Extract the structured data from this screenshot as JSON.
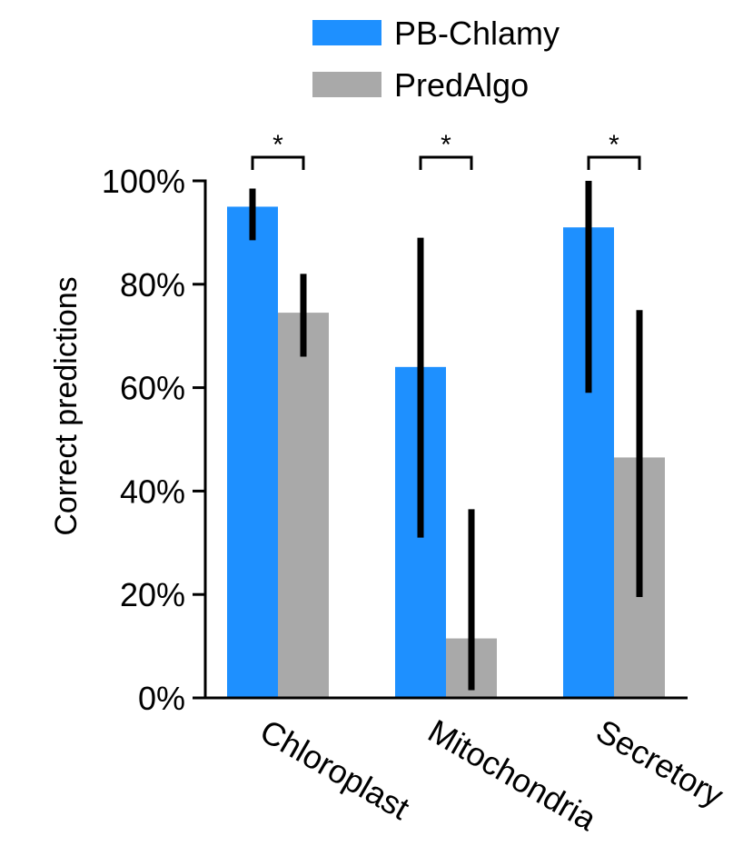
{
  "chart_data": {
    "type": "bar",
    "title": "",
    "xlabel": "",
    "ylabel": "Correct predictions",
    "ylim": [
      0,
      100
    ],
    "yticks": [
      0,
      20,
      40,
      60,
      80,
      100
    ],
    "ytick_labels": [
      "0%",
      "20%",
      "40%",
      "60%",
      "80%",
      "100%"
    ],
    "categories": [
      "Chloroplast",
      "Mitochondria",
      "Secretory"
    ],
    "series": [
      {
        "name": "PB-Chlamy",
        "color": "#1e90ff",
        "values": [
          95,
          64,
          91
        ],
        "error_low": [
          88.5,
          31,
          59
        ],
        "error_high": [
          98.5,
          89,
          100
        ]
      },
      {
        "name": "PredAlgo",
        "color": "#a9a9a9",
        "values": [
          74.5,
          11.5,
          46.5
        ],
        "error_low": [
          66,
          1.5,
          19.5
        ],
        "error_high": [
          82,
          36.5,
          75
        ]
      }
    ],
    "significance": [
      "*",
      "*",
      "*"
    ],
    "legend_position": "top-right",
    "grid": false
  }
}
